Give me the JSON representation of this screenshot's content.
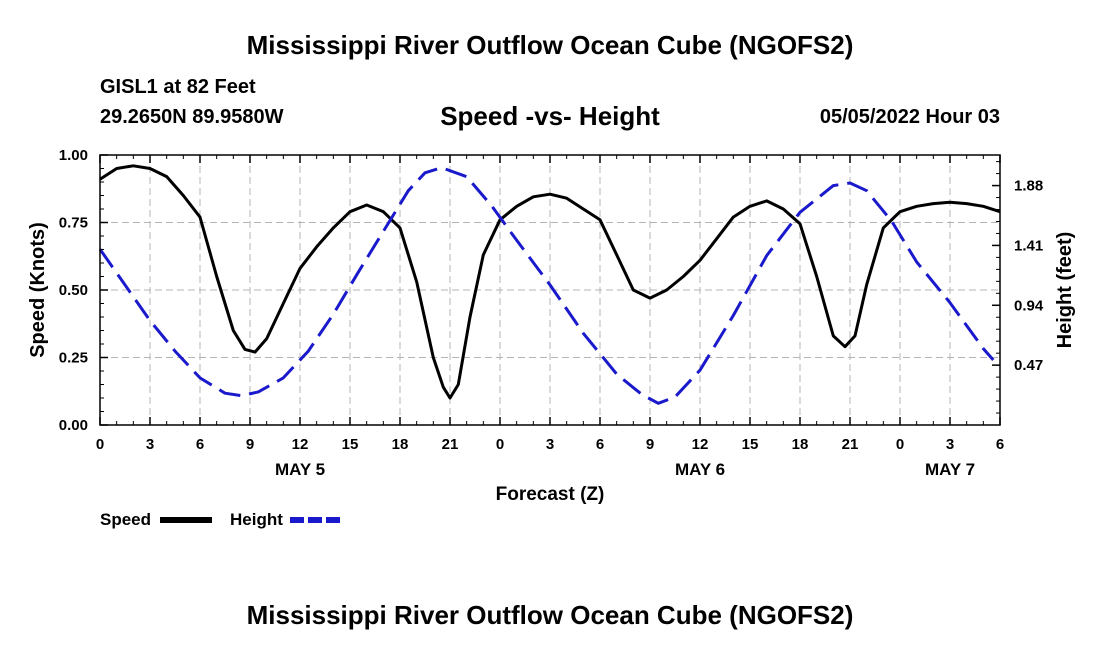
{
  "header": {
    "title": "Mississippi River Outflow Ocean Cube (NGOFS2)",
    "station": "GISL1 at 82 Feet",
    "coords": "29.2650N  89.9580W",
    "subtitle": "Speed -vs- Height",
    "datetime": "05/05/2022 Hour 03",
    "bottom_title": "Mississippi River Outflow Ocean Cube (NGOFS2)"
  },
  "chart_data": {
    "type": "line",
    "title": "Speed -vs- Height",
    "xlabel": "Forecast (Z)",
    "ylabel_left": "Speed (Knots)",
    "ylabel_right": "Height (feet)",
    "x_range_hours": [
      0,
      54
    ],
    "x_ticks": [
      {
        "hour": 0,
        "label": "0"
      },
      {
        "hour": 3,
        "label": "3"
      },
      {
        "hour": 6,
        "label": "6"
      },
      {
        "hour": 9,
        "label": "9"
      },
      {
        "hour": 12,
        "label": "12"
      },
      {
        "hour": 15,
        "label": "15"
      },
      {
        "hour": 18,
        "label": "18"
      },
      {
        "hour": 21,
        "label": "21"
      },
      {
        "hour": 24,
        "label": "0"
      },
      {
        "hour": 27,
        "label": "3"
      },
      {
        "hour": 30,
        "label": "6"
      },
      {
        "hour": 33,
        "label": "9"
      },
      {
        "hour": 36,
        "label": "12"
      },
      {
        "hour": 39,
        "label": "15"
      },
      {
        "hour": 42,
        "label": "18"
      },
      {
        "hour": 45,
        "label": "21"
      },
      {
        "hour": 48,
        "label": "0"
      },
      {
        "hour": 51,
        "label": "3"
      },
      {
        "hour": 54,
        "label": "6"
      }
    ],
    "day_labels": [
      {
        "hour": 12,
        "label": "MAY 5"
      },
      {
        "hour": 36,
        "label": "MAY 6"
      },
      {
        "hour": 51,
        "label": "MAY 7"
      }
    ],
    "y_left": {
      "min": 0,
      "max": 1.0,
      "ticks": [
        0,
        0.25,
        0.5,
        0.75,
        1.0
      ],
      "tick_labels": [
        "0.00",
        "0.25",
        "0.50",
        "0.75",
        "1.00"
      ]
    },
    "y_right": {
      "min": 0,
      "max": 2.12,
      "ticks": [
        0.47,
        0.94,
        1.41,
        1.88
      ],
      "tick_labels": [
        "0.47",
        "0.94",
        "1.41",
        "1.88"
      ]
    },
    "grid": true,
    "series": [
      {
        "name": "Speed",
        "axis": "left",
        "color": "#000000",
        "dash": "solid",
        "points": [
          [
            0,
            0.91
          ],
          [
            1,
            0.95
          ],
          [
            2,
            0.96
          ],
          [
            3,
            0.95
          ],
          [
            4,
            0.92
          ],
          [
            5,
            0.85
          ],
          [
            6,
            0.77
          ],
          [
            7,
            0.55
          ],
          [
            8,
            0.35
          ],
          [
            8.7,
            0.28
          ],
          [
            9.3,
            0.27
          ],
          [
            10,
            0.32
          ],
          [
            11,
            0.45
          ],
          [
            12,
            0.58
          ],
          [
            13,
            0.66
          ],
          [
            14,
            0.73
          ],
          [
            15,
            0.79
          ],
          [
            16,
            0.815
          ],
          [
            17,
            0.79
          ],
          [
            18,
            0.73
          ],
          [
            19,
            0.53
          ],
          [
            20,
            0.25
          ],
          [
            20.6,
            0.14
          ],
          [
            21,
            0.1
          ],
          [
            21.5,
            0.15
          ],
          [
            22.2,
            0.4
          ],
          [
            23,
            0.63
          ],
          [
            24,
            0.76
          ],
          [
            25,
            0.81
          ],
          [
            26,
            0.845
          ],
          [
            27,
            0.855
          ],
          [
            28,
            0.84
          ],
          [
            29,
            0.8
          ],
          [
            30,
            0.76
          ],
          [
            31,
            0.63
          ],
          [
            32,
            0.5
          ],
          [
            33,
            0.47
          ],
          [
            34,
            0.5
          ],
          [
            35,
            0.55
          ],
          [
            36,
            0.61
          ],
          [
            37,
            0.69
          ],
          [
            38,
            0.77
          ],
          [
            39,
            0.81
          ],
          [
            40,
            0.83
          ],
          [
            41,
            0.8
          ],
          [
            42,
            0.745
          ],
          [
            43,
            0.55
          ],
          [
            44,
            0.33
          ],
          [
            44.7,
            0.29
          ],
          [
            45.3,
            0.33
          ],
          [
            46,
            0.52
          ],
          [
            47,
            0.73
          ],
          [
            48,
            0.79
          ],
          [
            49,
            0.81
          ],
          [
            50,
            0.82
          ],
          [
            51,
            0.825
          ],
          [
            52,
            0.82
          ],
          [
            53,
            0.81
          ],
          [
            54,
            0.79
          ]
        ]
      },
      {
        "name": "Height",
        "axis": "right",
        "color": "#1a1acc",
        "dash": "dashed",
        "points": [
          [
            0,
            1.38
          ],
          [
            1.5,
            1.1
          ],
          [
            3,
            0.82
          ],
          [
            4.5,
            0.58
          ],
          [
            6,
            0.37
          ],
          [
            7.5,
            0.25
          ],
          [
            8.5,
            0.23
          ],
          [
            9.5,
            0.26
          ],
          [
            11,
            0.37
          ],
          [
            12.5,
            0.58
          ],
          [
            14,
            0.87
          ],
          [
            15.5,
            1.2
          ],
          [
            17,
            1.52
          ],
          [
            18.5,
            1.84
          ],
          [
            19.5,
            1.98
          ],
          [
            20.5,
            2.02
          ],
          [
            22,
            1.95
          ],
          [
            23.5,
            1.72
          ],
          [
            25,
            1.45
          ],
          [
            27,
            1.1
          ],
          [
            29,
            0.72
          ],
          [
            31,
            0.4
          ],
          [
            32.5,
            0.24
          ],
          [
            33.5,
            0.17
          ],
          [
            34.5,
            0.22
          ],
          [
            36,
            0.43
          ],
          [
            38,
            0.86
          ],
          [
            40,
            1.33
          ],
          [
            42,
            1.67
          ],
          [
            44,
            1.88
          ],
          [
            45,
            1.9
          ],
          [
            46,
            1.84
          ],
          [
            47.5,
            1.6
          ],
          [
            49,
            1.28
          ],
          [
            51,
            0.96
          ],
          [
            53,
            0.6
          ],
          [
            53.6,
            0.51
          ]
        ]
      }
    ],
    "legend": [
      {
        "name": "Speed",
        "color": "#000000",
        "dash": "solid"
      },
      {
        "name": "Height",
        "color": "#1a1acc",
        "dash": "dashed"
      }
    ]
  }
}
